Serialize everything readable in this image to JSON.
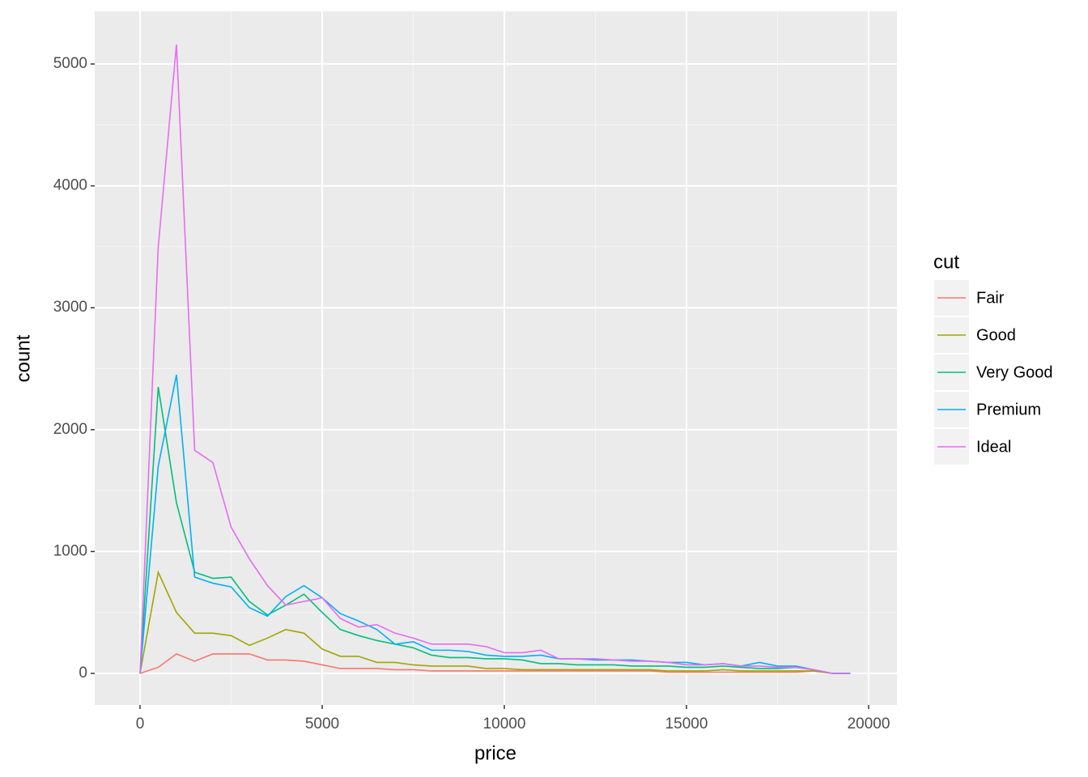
{
  "chart_data": {
    "type": "line",
    "x_label": "price",
    "y_label": "count",
    "legend_title": "cut",
    "x": [
      0,
      500,
      1000,
      1500,
      2000,
      2500,
      3000,
      3500,
      4000,
      4500,
      5000,
      5500,
      6000,
      6500,
      7000,
      7500,
      8000,
      8500,
      9000,
      9500,
      10000,
      10500,
      11000,
      11500,
      12000,
      12500,
      13000,
      13500,
      14000,
      14500,
      15000,
      15500,
      16000,
      16500,
      17000,
      17500,
      18000,
      18500,
      19000,
      19500
    ],
    "series": [
      {
        "name": "Fair",
        "color": "#F8766D",
        "values": [
          0,
          50,
          160,
          100,
          160,
          160,
          160,
          110,
          110,
          100,
          70,
          40,
          40,
          40,
          30,
          30,
          20,
          20,
          20,
          20,
          20,
          20,
          20,
          20,
          20,
          20,
          20,
          20,
          20,
          10,
          10,
          10,
          10,
          10,
          10,
          10,
          10,
          20,
          0,
          0
        ]
      },
      {
        "name": "Good",
        "color": "#A3A500",
        "values": [
          0,
          830,
          500,
          330,
          330,
          310,
          230,
          290,
          360,
          330,
          200,
          140,
          140,
          90,
          90,
          70,
          60,
          60,
          60,
          40,
          40,
          30,
          30,
          30,
          30,
          30,
          30,
          30,
          30,
          20,
          20,
          20,
          30,
          20,
          20,
          20,
          20,
          20,
          0,
          0
        ]
      },
      {
        "name": "Very Good",
        "color": "#00BF7D",
        "values": [
          0,
          2350,
          1400,
          830,
          780,
          790,
          590,
          480,
          560,
          650,
          500,
          360,
          310,
          270,
          240,
          210,
          150,
          130,
          130,
          120,
          120,
          110,
          80,
          80,
          70,
          70,
          70,
          60,
          60,
          60,
          50,
          50,
          60,
          50,
          40,
          40,
          50,
          30,
          0,
          0
        ]
      },
      {
        "name": "Premium",
        "color": "#00B0F6",
        "values": [
          0,
          1700,
          2450,
          790,
          740,
          710,
          540,
          470,
          630,
          720,
          620,
          490,
          430,
          360,
          240,
          260,
          190,
          190,
          180,
          150,
          140,
          140,
          150,
          120,
          120,
          110,
          110,
          110,
          100,
          90,
          90,
          70,
          80,
          60,
          90,
          60,
          60,
          30,
          0,
          0
        ]
      },
      {
        "name": "Ideal",
        "color": "#E76BF3",
        "values": [
          0,
          3500,
          5160,
          1830,
          1730,
          1200,
          940,
          720,
          560,
          590,
          620,
          450,
          380,
          400,
          330,
          290,
          240,
          240,
          240,
          220,
          170,
          170,
          190,
          120,
          120,
          120,
          110,
          100,
          100,
          90,
          70,
          70,
          80,
          60,
          60,
          50,
          50,
          30,
          0,
          0
        ]
      }
    ],
    "xlim": [
      -1244,
      20778
    ],
    "ylim": [
      -259,
      5432
    ],
    "xticks": [
      0,
      5000,
      10000,
      15000,
      20000
    ],
    "yticks": [
      0,
      1000,
      2000,
      3000,
      4000,
      5000
    ],
    "grid": true,
    "legend_position": "right"
  }
}
